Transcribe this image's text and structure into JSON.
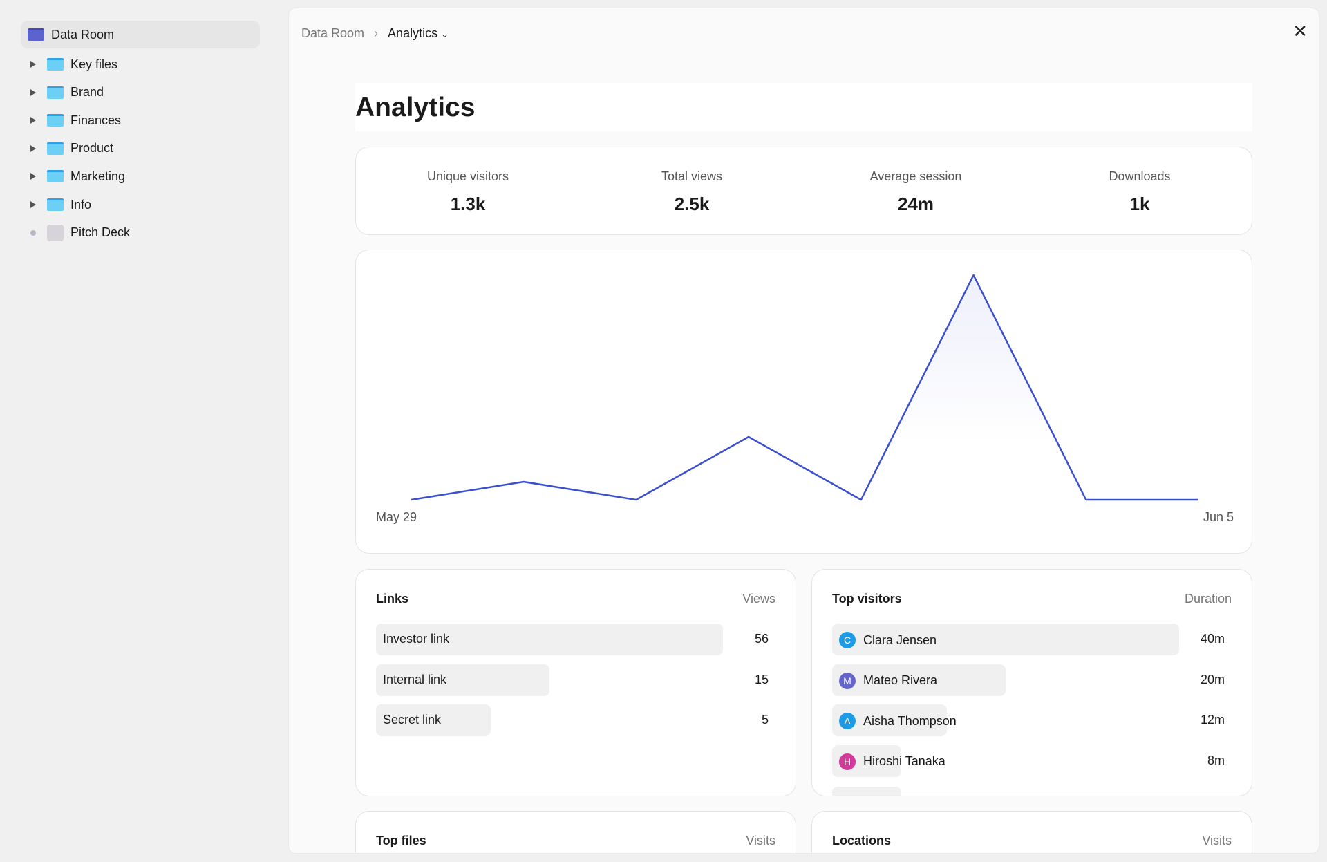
{
  "sidebar": {
    "root": "Data Room",
    "items": [
      {
        "label": "Key files",
        "type": "folder"
      },
      {
        "label": "Brand",
        "type": "folder"
      },
      {
        "label": "Finances",
        "type": "folder"
      },
      {
        "label": "Product",
        "type": "folder"
      },
      {
        "label": "Marketing",
        "type": "folder"
      },
      {
        "label": "Info",
        "type": "folder"
      },
      {
        "label": "Pitch Deck",
        "type": "file"
      }
    ]
  },
  "breadcrumb": {
    "parent": "Data Room",
    "current": "Analytics"
  },
  "page_title": "Analytics",
  "stats": [
    {
      "label": "Unique visitors",
      "value": "1.3k"
    },
    {
      "label": "Total views",
      "value": "2.5k"
    },
    {
      "label": "Average session",
      "value": "24m"
    },
    {
      "label": "Downloads",
      "value": "1k"
    }
  ],
  "chart_data": {
    "type": "area",
    "x": [
      "May 29",
      "May 30",
      "May 31",
      "Jun 1",
      "Jun 2",
      "Jun 3",
      "Jun 4",
      "Jun 5"
    ],
    "x_tick_labels": [
      "May 29",
      "Jun 5"
    ],
    "values": [
      0,
      8,
      0,
      28,
      0,
      100,
      0,
      0
    ],
    "ylim": [
      0,
      100
    ],
    "grid": false,
    "color": "#3b4fd1"
  },
  "links": {
    "title": "Links",
    "column": "Views",
    "rows": [
      {
        "label": "Investor link",
        "value": "56",
        "fraction": 1.0
      },
      {
        "label": "Internal link",
        "value": "15",
        "fraction": 0.5
      },
      {
        "label": "Secret link",
        "value": "5",
        "fraction": 0.33
      }
    ]
  },
  "visitors": {
    "title": "Top visitors",
    "column": "Duration",
    "rows": [
      {
        "initial": "C",
        "name": "Clara Jensen",
        "value": "40m",
        "color": "#1e9be6",
        "fraction": 1.0
      },
      {
        "initial": "M",
        "name": "Mateo Rivera",
        "value": "20m",
        "color": "#6466cc",
        "fraction": 0.5
      },
      {
        "initial": "A",
        "name": "Aisha Thompson",
        "value": "12m",
        "color": "#1e9be6",
        "fraction": 0.33
      },
      {
        "initial": "H",
        "name": "Hiroshi Tanaka",
        "value": "8m",
        "color": "#d23a9a",
        "fraction": 0.2
      }
    ]
  },
  "top_files": {
    "title": "Top files",
    "column": "Visits"
  },
  "locations": {
    "title": "Locations",
    "column": "Visits"
  }
}
